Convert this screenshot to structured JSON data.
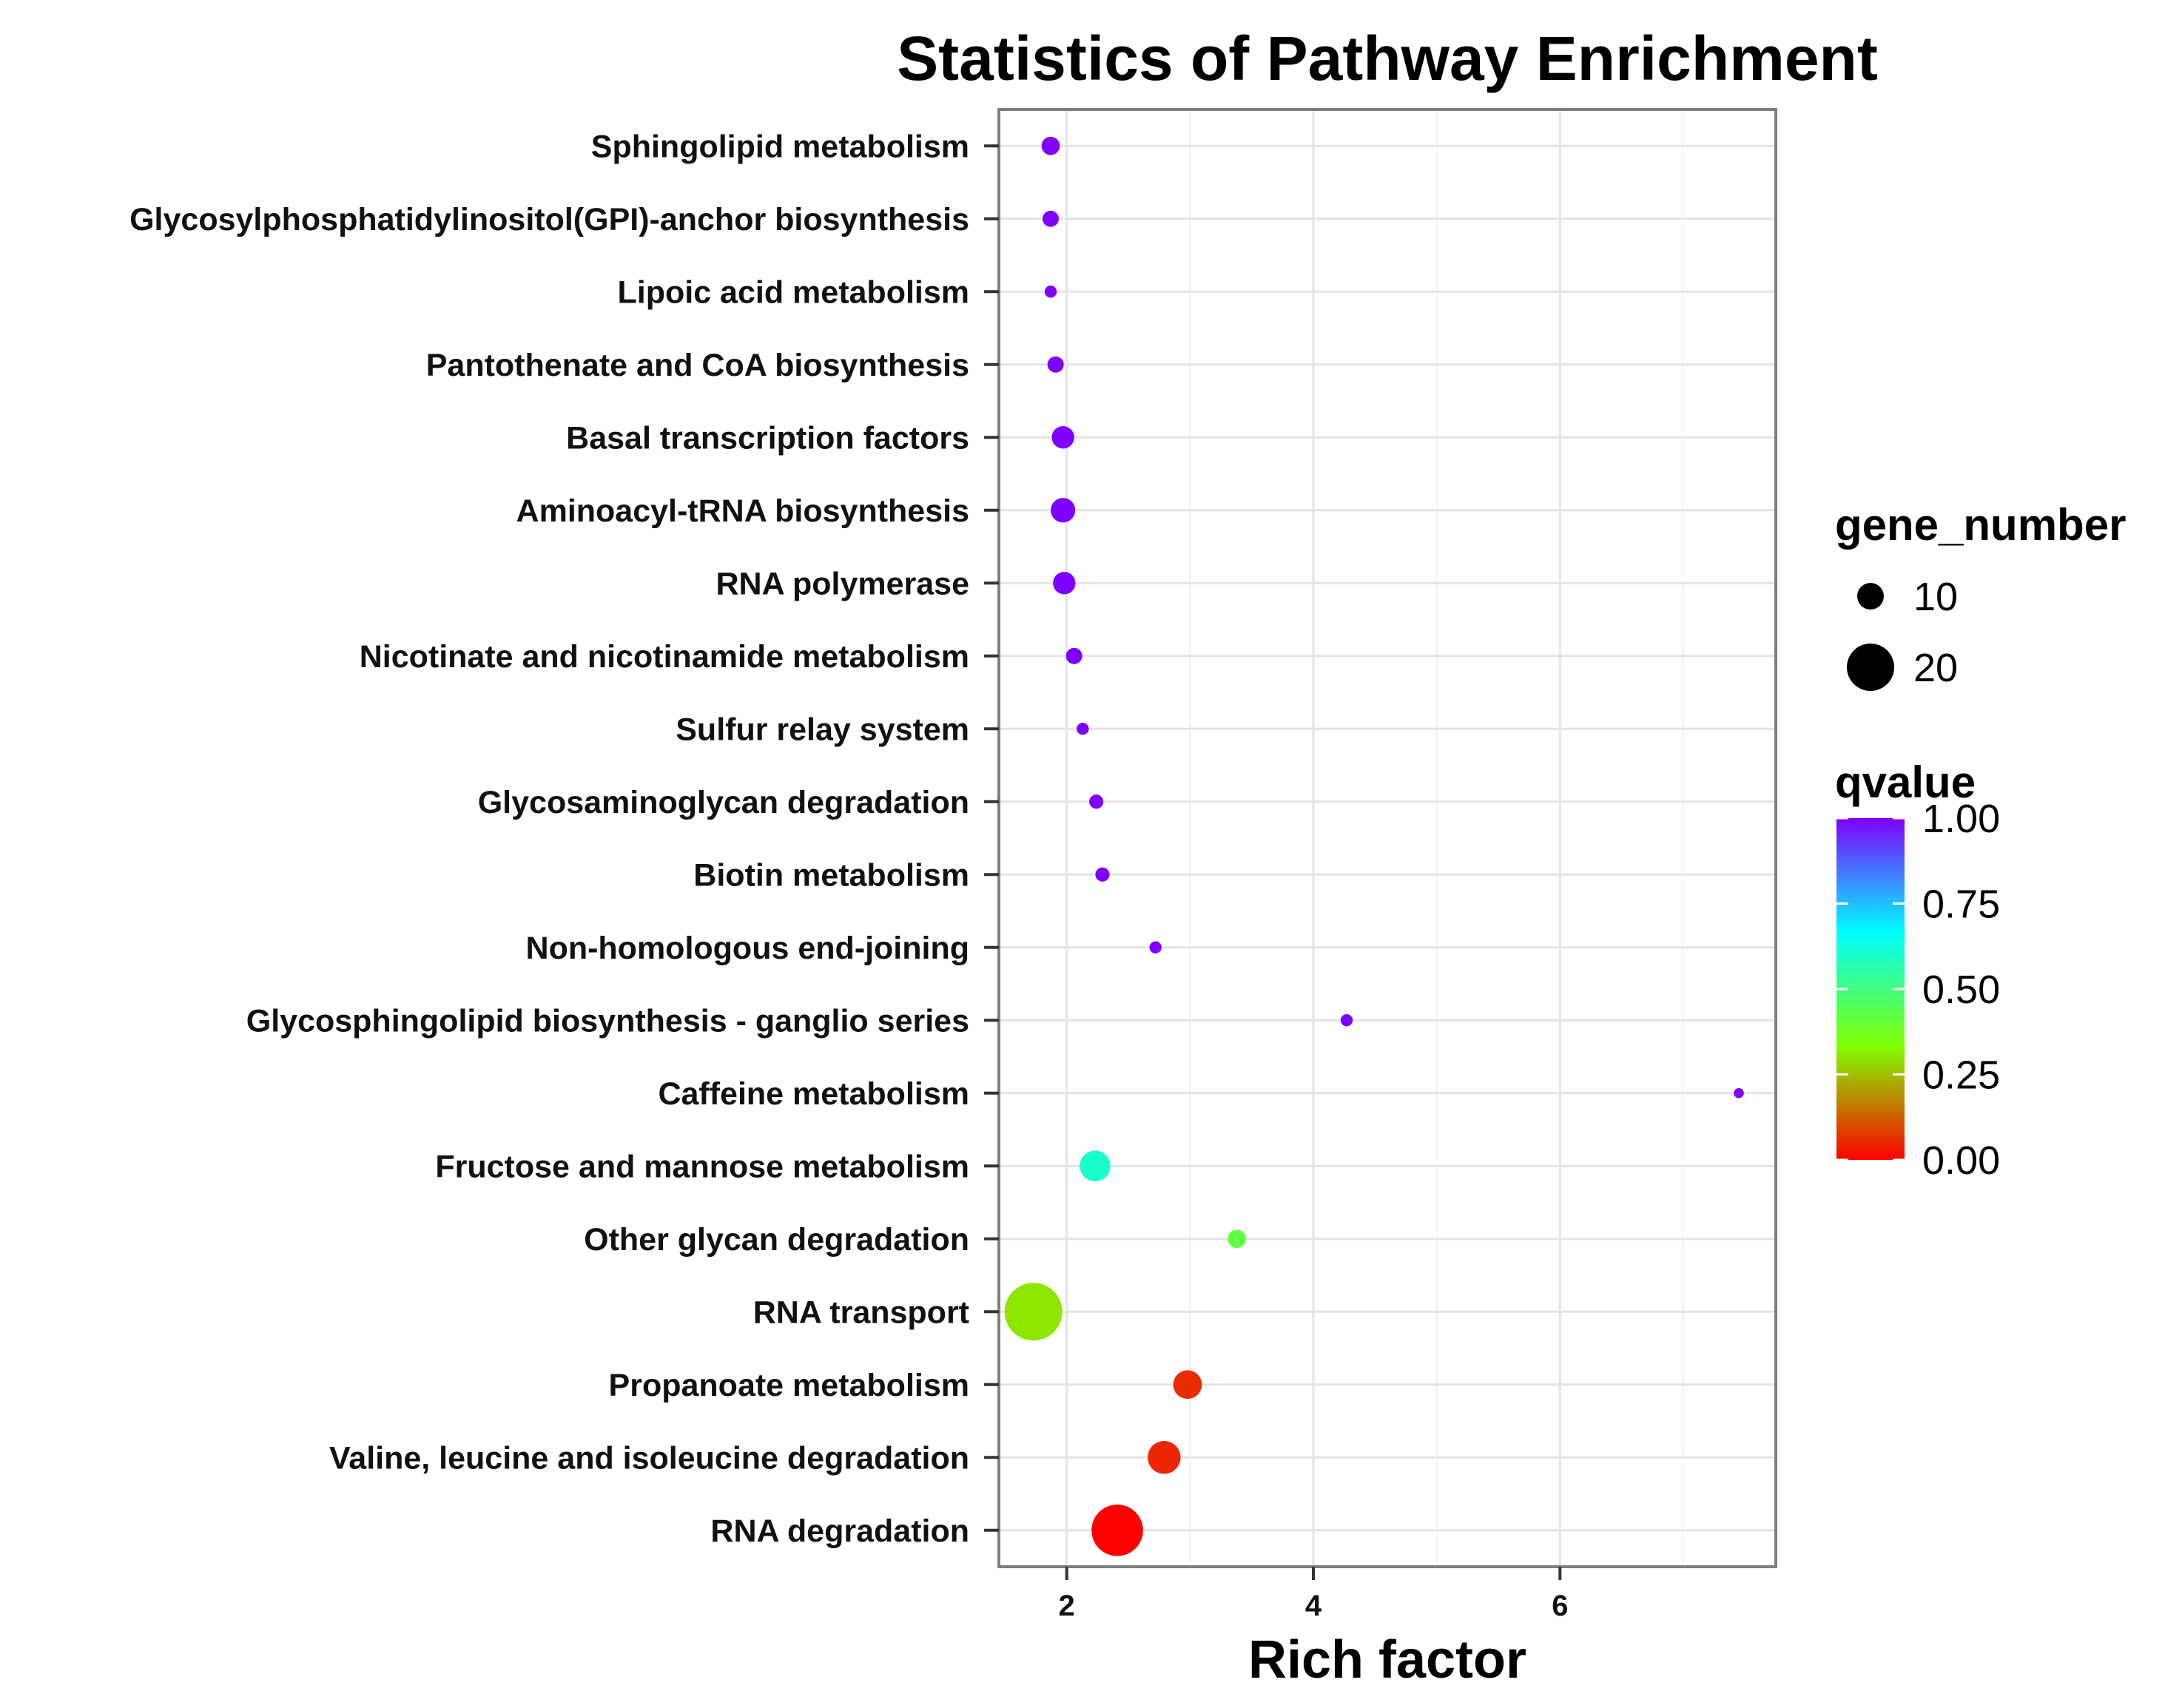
{
  "chart_data": {
    "type": "scatter",
    "title": "Statistics of Pathway Enrichment",
    "xlabel": "Rich factor",
    "ylabel": "",
    "xlim": [
      1.45,
      7.75
    ],
    "xticks": [
      2,
      4,
      6
    ],
    "grid": true,
    "points": [
      {
        "pathway": "Sphingolipid metabolism",
        "rich_factor": 1.87,
        "gene_number": 6,
        "qvalue": 1.0
      },
      {
        "pathway": "Glycosylphosphatidylinositol(GPI)-anchor biosynthesis",
        "rich_factor": 1.87,
        "gene_number": 5,
        "qvalue": 1.0
      },
      {
        "pathway": "Lipoic acid metabolism",
        "rich_factor": 1.87,
        "gene_number": 3,
        "qvalue": 1.0
      },
      {
        "pathway": "Pantothenate and CoA biosynthesis",
        "rich_factor": 1.91,
        "gene_number": 5,
        "qvalue": 1.0
      },
      {
        "pathway": "Basal transcription factors",
        "rich_factor": 1.97,
        "gene_number": 8,
        "qvalue": 1.0
      },
      {
        "pathway": "Aminoacyl-tRNA biosynthesis",
        "rich_factor": 1.97,
        "gene_number": 9,
        "qvalue": 1.0
      },
      {
        "pathway": "RNA polymerase",
        "rich_factor": 1.98,
        "gene_number": 8,
        "qvalue": 1.0
      },
      {
        "pathway": "Nicotinate and nicotinamide metabolism",
        "rich_factor": 2.06,
        "gene_number": 5,
        "qvalue": 1.0
      },
      {
        "pathway": "Sulfur relay system",
        "rich_factor": 2.13,
        "gene_number": 3,
        "qvalue": 1.0
      },
      {
        "pathway": "Glycosaminoglycan degradation",
        "rich_factor": 2.24,
        "gene_number": 4,
        "qvalue": 1.0
      },
      {
        "pathway": "Biotin metabolism",
        "rich_factor": 2.29,
        "gene_number": 4,
        "qvalue": 1.0
      },
      {
        "pathway": "Non-homologous end-joining",
        "rich_factor": 2.72,
        "gene_number": 3,
        "qvalue": 1.0
      },
      {
        "pathway": "Glycosphingolipid biosynthesis - ganglio series",
        "rich_factor": 4.27,
        "gene_number": 3,
        "qvalue": 1.0
      },
      {
        "pathway": "Caffeine metabolism",
        "rich_factor": 7.45,
        "gene_number": 2,
        "qvalue": 1.0
      },
      {
        "pathway": "Fructose and mannose metabolism",
        "rich_factor": 2.23,
        "gene_number": 12,
        "qvalue": 0.6
      },
      {
        "pathway": "Other glycan degradation",
        "rich_factor": 3.38,
        "gene_number": 6,
        "qvalue": 0.42
      },
      {
        "pathway": "RNA transport",
        "rich_factor": 1.73,
        "gene_number": 25,
        "qvalue": 0.3
      },
      {
        "pathway": "Propanoate metabolism",
        "rich_factor": 2.98,
        "gene_number": 11,
        "qvalue": 0.06
      },
      {
        "pathway": "Valine, leucine and isoleucine degradation",
        "rich_factor": 2.79,
        "gene_number": 13,
        "qvalue": 0.05
      },
      {
        "pathway": "RNA degradation",
        "rich_factor": 2.41,
        "gene_number": 22,
        "qvalue": 0.0
      }
    ],
    "size_legend": {
      "title": "gene_number",
      "entries": [
        {
          "value": 10,
          "label": "10"
        },
        {
          "value": 20,
          "label": "20"
        }
      ]
    },
    "color_legend": {
      "title": "qvalue",
      "ticks": [
        "1.00",
        "0.75",
        "0.50",
        "0.25",
        "0.00"
      ],
      "tick_values": [
        1.0,
        0.75,
        0.5,
        0.25,
        0.0
      ],
      "gradient": [
        "#ff0000",
        "#80ff00",
        "#00ffff",
        "#8000ff"
      ]
    }
  }
}
